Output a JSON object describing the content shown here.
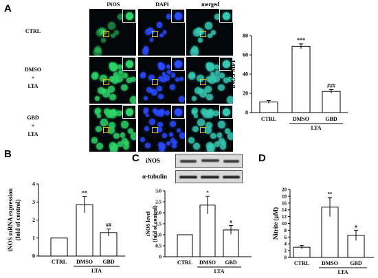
{
  "panel_letters": {
    "a": "A",
    "b": "B",
    "c": "C",
    "d": "D"
  },
  "panel_a": {
    "columns": [
      "iNOS",
      "DAPI",
      "merged"
    ],
    "rows": [
      {
        "lines": [
          "CTRL"
        ]
      },
      {
        "lines": [
          "DMSO",
          "+",
          "LTA"
        ]
      },
      {
        "lines": [
          "GBD",
          "+",
          "LTA"
        ]
      }
    ],
    "colors": {
      "inos": "#2fd36a",
      "dapi": "#2d4bff",
      "merged": "#38c8b4",
      "roi": "#e4c418"
    }
  },
  "blot": {
    "labels": [
      "iNOS",
      "α-tubulin"
    ],
    "inos_band_intensity": [
      0.55,
      1.0,
      0.6
    ]
  },
  "chart_data": [
    {
      "id": "A-mfi",
      "type": "bar",
      "categories": [
        "CTRL",
        "DMSO",
        "GBD"
      ],
      "group_label": "LTA",
      "values": [
        11,
        69,
        22
      ],
      "errors": [
        1.5,
        2.5,
        2
      ],
      "annotations": [
        "",
        "***",
        "###"
      ],
      "ylabel": "iNOS MFI",
      "ylim": [
        0,
        80
      ],
      "yticks": [
        "0",
        "20",
        "40",
        "60",
        "80"
      ],
      "grid": false
    },
    {
      "id": "B-mrna",
      "type": "bar",
      "categories": [
        "CTRL",
        "DMSO",
        "GBD"
      ],
      "group_label": "LTA",
      "values": [
        1,
        2.85,
        1.3
      ],
      "errors": [
        0,
        0.45,
        0.2
      ],
      "annotations": [
        "",
        "**",
        "##"
      ],
      "ylabel": [
        "iNOS mRNA expression",
        "(fold of control)"
      ],
      "ylim": [
        0,
        4
      ],
      "yticks": [
        "0",
        "1",
        "2",
        "3",
        "4"
      ],
      "grid": false
    },
    {
      "id": "C-level",
      "type": "bar",
      "categories": [
        "CTRL",
        "DMSO",
        "GBD"
      ],
      "group_label": "LTA",
      "values": [
        1.0,
        2.35,
        1.22
      ],
      "errors": [
        0,
        0.4,
        0.2
      ],
      "annotations": [
        "",
        "*",
        "#"
      ],
      "ylabel": [
        "iNOS level",
        "(fold of control)"
      ],
      "ylim": [
        0,
        3.0
      ],
      "yticks": [
        "0",
        "0.5",
        "1.0",
        "1.5",
        "2.0",
        "2.5",
        "3.0"
      ],
      "grid": false
    },
    {
      "id": "D-nitrite",
      "type": "bar",
      "categories": [
        "CTRL",
        "DMSO",
        "GBD"
      ],
      "group_label": "LTA",
      "values": [
        3,
        14.8,
        6.5
      ],
      "errors": [
        0.5,
        2.8,
        1.5
      ],
      "annotations": [
        "",
        "**",
        "#"
      ],
      "ylabel": "Nitrite (μM)",
      "ylim": [
        0,
        20
      ],
      "yticks": [
        "0",
        "2",
        "4",
        "6",
        "8",
        "10",
        "12",
        "14",
        "16",
        "18",
        "20"
      ],
      "grid": false
    }
  ]
}
